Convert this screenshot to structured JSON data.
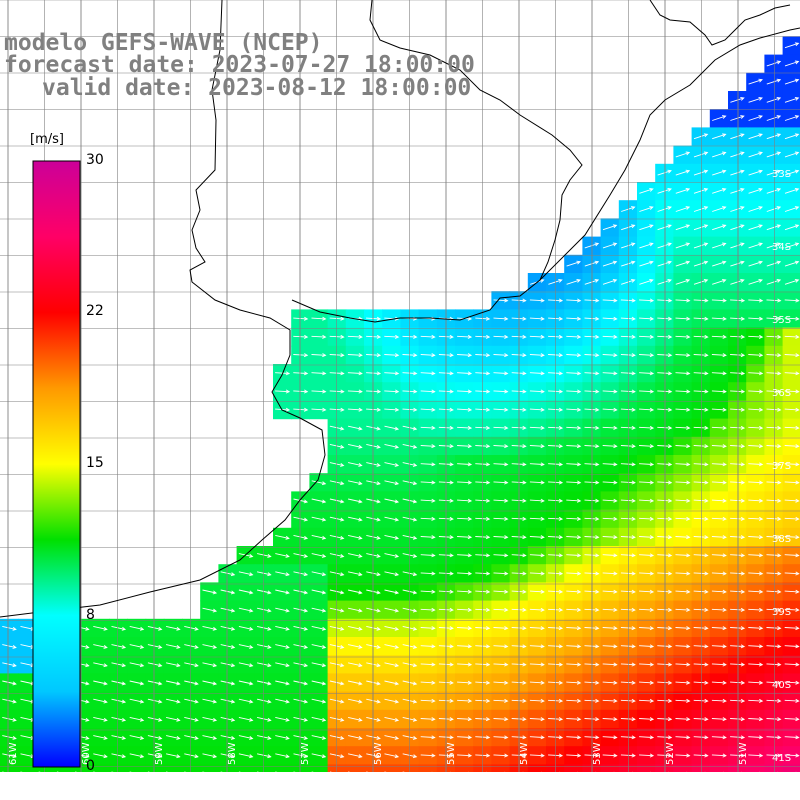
{
  "title": {
    "line1": "modelo GEFS-WAVE (NCEP)",
    "line2": "forecast date: 2023-07-27 18:00:00",
    "line3": "valid date: 2023-08-12 18:00:00"
  },
  "colorbar": {
    "unit": "[m/s]",
    "ticks": [
      "30",
      "22",
      "15",
      "8",
      "0"
    ],
    "range": [
      0,
      30
    ],
    "colors": [
      "#0000ff",
      "#00c8ff",
      "#00ffff",
      "#00e000",
      "#ffff00",
      "#ff9900",
      "#ff0000",
      "#ff0066",
      "#cc0099"
    ]
  },
  "map": {
    "latitude_labels": [
      "33S",
      "34S",
      "35S",
      "36S",
      "37S",
      "38S",
      "39S",
      "40S",
      "41S"
    ],
    "longitude_labels": [
      "61W",
      "60W",
      "59W",
      "58W",
      "57W",
      "56W",
      "55W",
      "54W",
      "53W",
      "52W",
      "51W"
    ],
    "land_color": "#ffffff",
    "grid_color": "#808080",
    "arrow_color": "#ffffff"
  }
}
